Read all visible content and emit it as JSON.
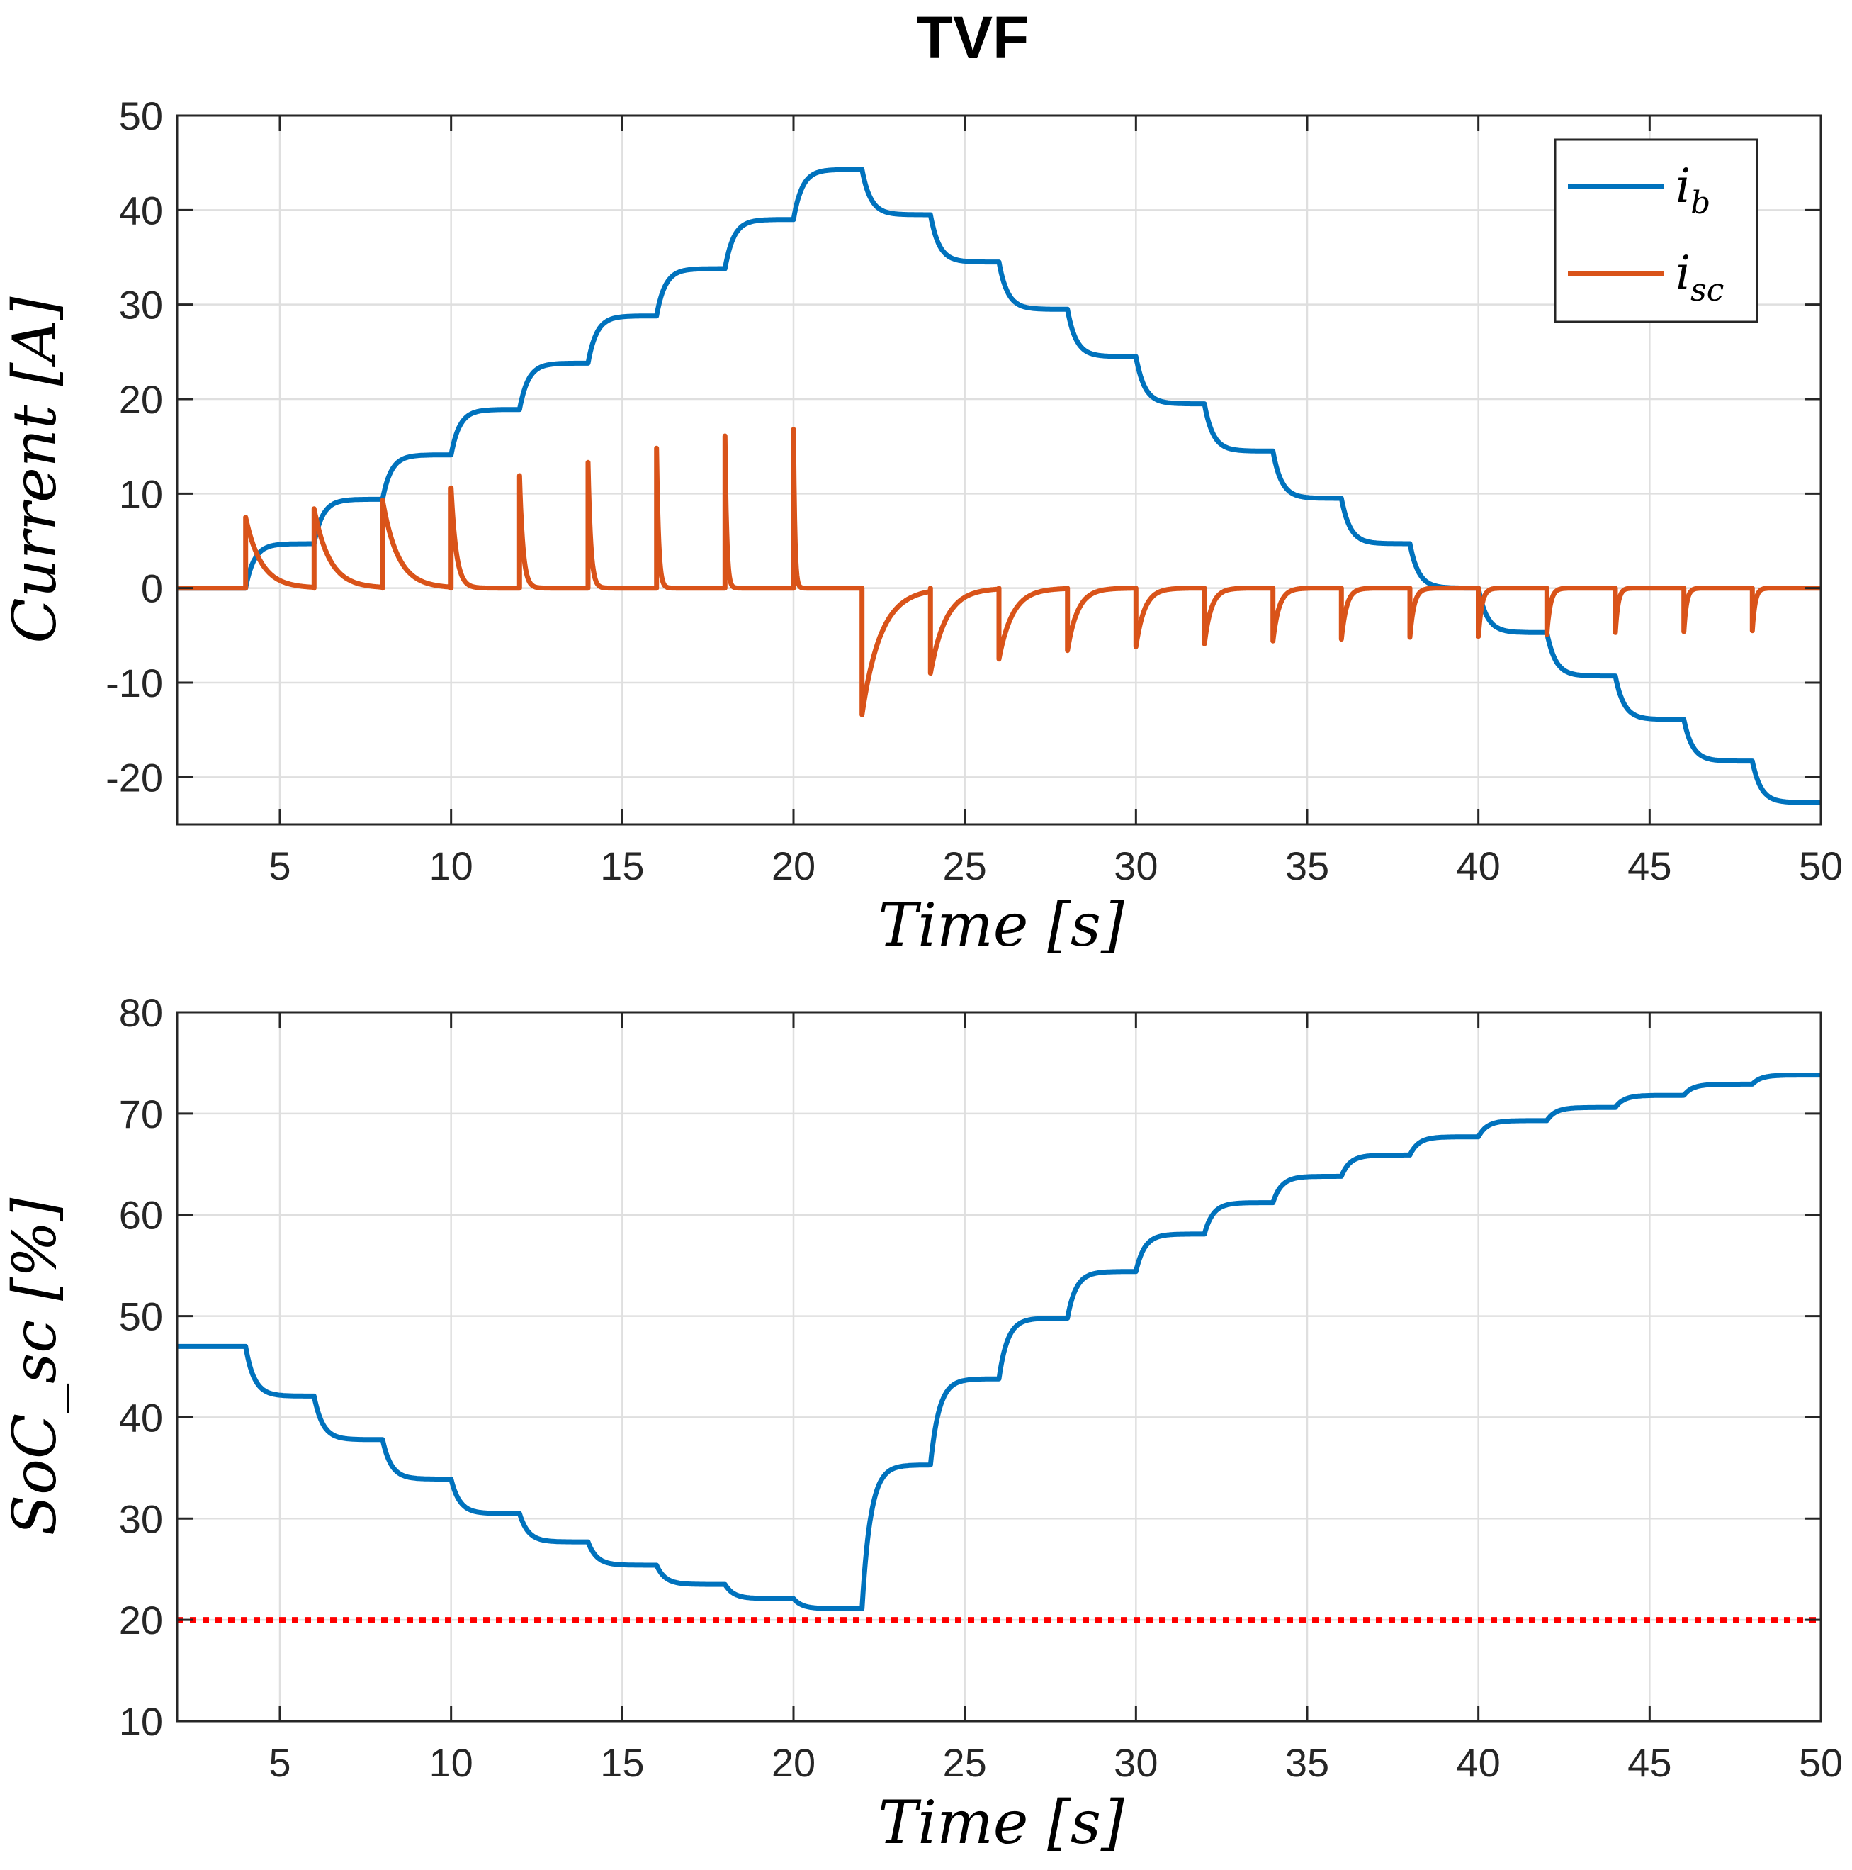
{
  "chart_data": [
    {
      "type": "line",
      "title": "TVF",
      "xlabel": "Time [s]",
      "ylabel": "Current [A]",
      "xlim": [
        2,
        50
      ],
      "ylim": [
        -25,
        50
      ],
      "xticks": [
        5,
        10,
        15,
        20,
        25,
        30,
        35,
        40,
        45,
        50
      ],
      "yticks": [
        50,
        40,
        30,
        20,
        10,
        0,
        -10,
        -20
      ],
      "grid": true,
      "legend_position": "top-right",
      "series": [
        {
          "name": "i_b",
          "label_main": "i",
          "label_sub": "b",
          "color": "#0072BD",
          "kind": "staircase",
          "x": [
            2,
            4,
            6,
            8,
            10,
            12,
            14,
            16,
            18,
            20,
            22,
            24,
            26,
            28,
            30,
            32,
            34,
            36,
            38,
            40,
            42,
            44,
            46,
            48,
            50
          ],
          "y": [
            0,
            4.7,
            9.4,
            14.1,
            18.9,
            23.8,
            28.8,
            33.8,
            39.0,
            44.3,
            39.5,
            34.5,
            29.5,
            24.5,
            19.5,
            14.5,
            9.5,
            4.7,
            0,
            -4.7,
            -9.3,
            -13.9,
            -18.3,
            -22.7,
            -22.7
          ]
        },
        {
          "name": "i_sc",
          "label_main": "i",
          "label_sub": "sc",
          "color": "#D95319",
          "kind": "spikes",
          "x": [
            4,
            6,
            8,
            10,
            12,
            14,
            16,
            18,
            20,
            22,
            24,
            26,
            28,
            30,
            32,
            34,
            36,
            38,
            40,
            42,
            44,
            46,
            48
          ],
          "peaks": [
            7.5,
            8.4,
            9.3,
            10.6,
            11.9,
            13.3,
            14.8,
            16.1,
            16.8,
            -13.4,
            -9.0,
            -7.5,
            -6.6,
            -6.2,
            -5.9,
            -5.6,
            -5.4,
            -5.2,
            -5.1,
            -4.9,
            -4.7,
            -4.6,
            -4.5
          ],
          "decay": [
            0.45,
            0.45,
            0.45,
            0.15,
            0.1,
            0.08,
            0.06,
            0.05,
            0.04,
            0.55,
            0.45,
            0.4,
            0.3,
            0.25,
            0.2,
            0.18,
            0.15,
            0.12,
            0.1,
            0.1,
            0.08,
            0.08,
            0.08
          ]
        }
      ]
    },
    {
      "type": "line",
      "title": "",
      "xlabel": "Time [s]",
      "ylabel": "SoC_sc [%]",
      "xlim": [
        2,
        50
      ],
      "ylim": [
        10,
        80
      ],
      "xticks": [
        5,
        10,
        15,
        20,
        25,
        30,
        35,
        40,
        45,
        50
      ],
      "yticks": [
        80,
        70,
        60,
        50,
        40,
        30,
        20,
        10
      ],
      "grid": true,
      "series": [
        {
          "name": "SoC_sc",
          "color": "#0072BD",
          "kind": "staircase",
          "x": [
            2,
            4,
            6,
            8,
            10,
            12,
            14,
            16,
            18,
            20,
            22,
            24,
            26,
            28,
            30,
            32,
            34,
            36,
            38,
            40,
            42,
            44,
            46,
            48,
            50
          ],
          "y": [
            47.0,
            42.1,
            37.8,
            33.9,
            30.5,
            27.7,
            25.4,
            23.5,
            22.1,
            21.1,
            35.3,
            43.8,
            49.8,
            54.4,
            58.1,
            61.2,
            63.8,
            65.9,
            67.7,
            69.3,
            70.6,
            71.8,
            72.9,
            73.8,
            73.8
          ]
        },
        {
          "name": "threshold",
          "color": "#FF0000",
          "kind": "hline-dotted",
          "y": 20
        }
      ]
    }
  ]
}
